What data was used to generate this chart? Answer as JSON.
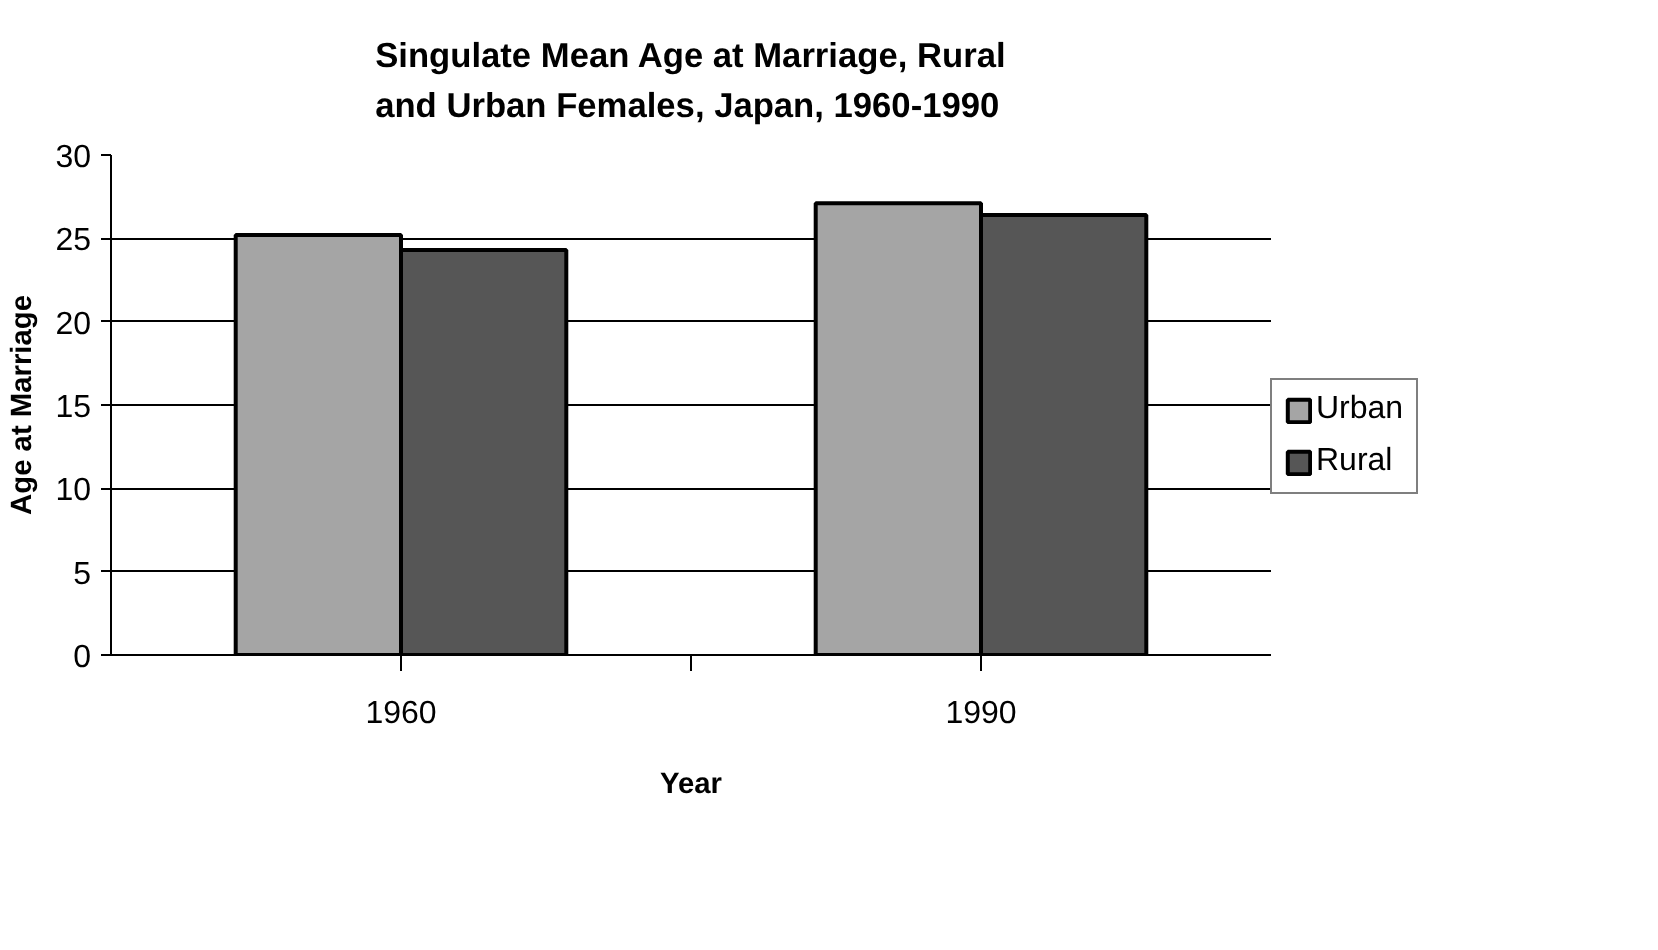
{
  "chart_data": {
    "type": "bar",
    "title": "Singulate Mean Age at Marriage, Rural and Urban Females, Japan, 1960-1990",
    "xlabel": "Year",
    "ylabel": "Age at Marriage",
    "categories": [
      "1960",
      "1990"
    ],
    "series": [
      {
        "name": "Urban",
        "color": "#a5a5a5",
        "values": [
          25.2,
          27.1
        ]
      },
      {
        "name": "Rural",
        "color": "#565656",
        "values": [
          24.3,
          26.4
        ]
      }
    ],
    "ylim": [
      0,
      30
    ],
    "yticks": [
      0,
      5,
      10,
      15,
      20,
      25,
      30
    ],
    "grid": "y",
    "legend": "right"
  }
}
